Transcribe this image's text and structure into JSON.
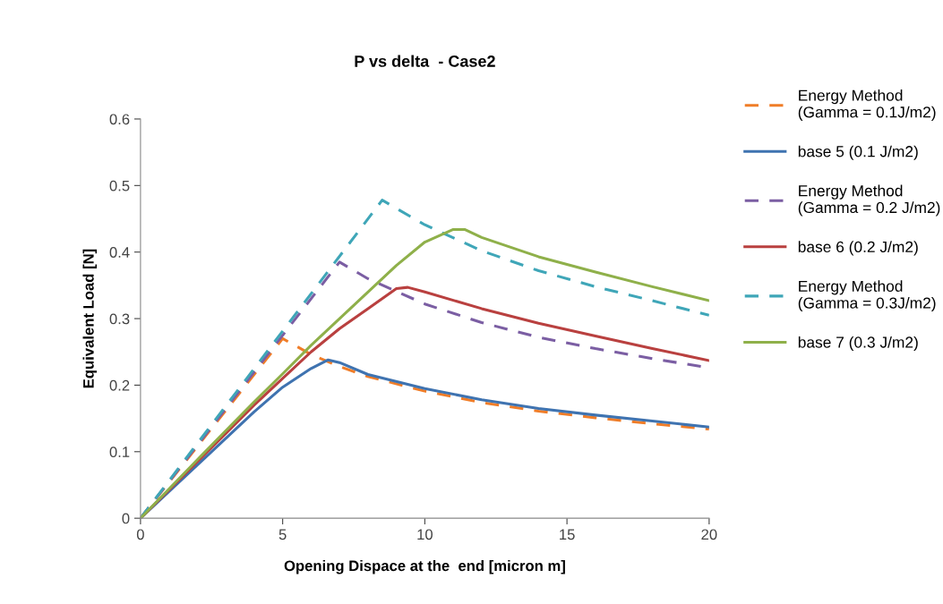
{
  "chart_data": {
    "type": "line",
    "title": "P vs delta  - Case2",
    "xlabel": "Opening Dispace at the  end [micron m]",
    "ylabel": "Equivalent Load [N]",
    "xlim": [
      0,
      20
    ],
    "xticks": [
      0,
      5,
      10,
      15,
      20
    ],
    "ylim": [
      0,
      0.6
    ],
    "yticks": [
      0,
      0.1,
      0.2,
      0.3,
      0.4,
      0.5,
      0.6
    ],
    "grid": false,
    "legend": "right",
    "marker": "none",
    "series": [
      {
        "name": "Energy Method\n(Gamma = 0.1J/m2)",
        "color": "#f07d28",
        "line_style": "dashed",
        "x": [
          0,
          5,
          6,
          7,
          8,
          10,
          12,
          14,
          16,
          18,
          20
        ],
        "values": [
          0,
          0.27,
          0.246,
          0.228,
          0.213,
          0.191,
          0.174,
          0.161,
          0.151,
          0.142,
          0.134
        ]
      },
      {
        "name": "base 5 (0.1 J/m2)",
        "color": "#3f73b0",
        "line_style": "solid",
        "x": [
          0,
          1,
          2,
          3,
          4,
          5,
          6,
          6.6,
          7,
          8,
          10,
          12,
          14,
          16,
          18,
          20
        ],
        "values": [
          0,
          0.04,
          0.08,
          0.12,
          0.16,
          0.197,
          0.225,
          0.238,
          0.234,
          0.216,
          0.195,
          0.178,
          0.165,
          0.155,
          0.146,
          0.137
        ]
      },
      {
        "name": "Energy Method\n(Gamma = 0.2 J/m2)",
        "color": "#7b5ea3",
        "line_style": "dashed",
        "x": [
          0,
          7,
          8,
          10,
          12,
          14,
          16,
          18,
          20
        ],
        "values": [
          0,
          0.385,
          0.36,
          0.322,
          0.294,
          0.272,
          0.255,
          0.24,
          0.226
        ]
      },
      {
        "name": "base 6 (0.2 J/m2)",
        "color": "#b9403f",
        "line_style": "solid",
        "x": [
          0,
          2,
          4,
          5,
          6,
          7,
          8,
          9,
          9.4,
          10,
          12,
          14,
          16,
          18,
          20
        ],
        "values": [
          0,
          0.085,
          0.17,
          0.21,
          0.25,
          0.285,
          0.315,
          0.345,
          0.347,
          0.34,
          0.315,
          0.293,
          0.274,
          0.255,
          0.237
        ]
      },
      {
        "name": "Energy Method\n(Gamma = 0.3J/m2)",
        "color": "#3fa6b8",
        "line_style": "dashed",
        "x": [
          0,
          8.5,
          10,
          12,
          14,
          16,
          18,
          20
        ],
        "values": [
          0,
          0.478,
          0.441,
          0.402,
          0.372,
          0.348,
          0.327,
          0.305
        ]
      },
      {
        "name": "base 7 (0.3 J/m2)",
        "color": "#8fb04a",
        "line_style": "solid",
        "x": [
          0,
          2,
          4,
          5,
          6,
          7,
          8,
          9,
          10,
          11,
          11.4,
          12,
          14,
          16,
          18,
          20
        ],
        "values": [
          0,
          0.088,
          0.175,
          0.217,
          0.26,
          0.3,
          0.34,
          0.38,
          0.415,
          0.434,
          0.434,
          0.422,
          0.393,
          0.37,
          0.348,
          0.327
        ]
      }
    ]
  }
}
